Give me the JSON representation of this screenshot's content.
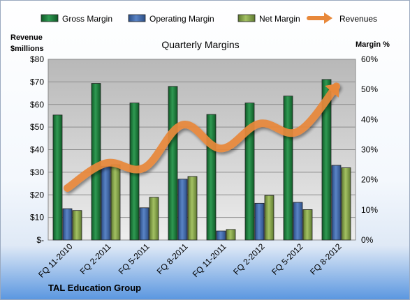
{
  "chart_data": {
    "type": "bar",
    "title": "Quarterly Margins",
    "left_axis_title": [
      "Revenue",
      "$millions"
    ],
    "right_axis_title": "Margin %",
    "footer": "TAL Education Group",
    "categories": [
      "FQ 11-2010",
      "FQ 2-2011",
      "FQ 5-2011",
      "FQ 8-2011",
      "FQ 11-2011",
      "FQ 2-2012",
      "FQ 5-2012",
      "FQ 8-2012"
    ],
    "left_ticks": [
      "$-",
      "$10",
      "$20",
      "$30",
      "$40",
      "$50",
      "$60",
      "$70",
      "$80"
    ],
    "right_ticks": [
      "0%",
      "10%",
      "20%",
      "30%",
      "40%",
      "50%",
      "60%"
    ],
    "left_ylim": [
      0,
      80
    ],
    "right_ylim": [
      0,
      60
    ],
    "series": [
      {
        "name": "Gross Margin",
        "axis": "right",
        "kind": "bar",
        "color": "#1e7a3a",
        "values": [
          41.5,
          52,
          45.5,
          51,
          41.7,
          45.5,
          47.8,
          53.3
        ]
      },
      {
        "name": "Operating Margin",
        "axis": "right",
        "kind": "bar",
        "color": "#3e67a8",
        "values": [
          10.4,
          24.5,
          10.7,
          20.2,
          3,
          12.2,
          12.5,
          24.8
        ]
      },
      {
        "name": "Net Margin",
        "axis": "right",
        "kind": "bar",
        "color": "#7f9f45",
        "values": [
          9.8,
          25,
          14.2,
          21.1,
          3.5,
          14.8,
          10.1,
          24
        ]
      },
      {
        "name": "Revenues",
        "axis": "left",
        "kind": "line",
        "color": "#e8883a",
        "values": [
          23,
          34,
          32,
          51,
          40.5,
          51.5,
          48,
          68
        ]
      }
    ],
    "grid": true,
    "legend_position": "top"
  }
}
